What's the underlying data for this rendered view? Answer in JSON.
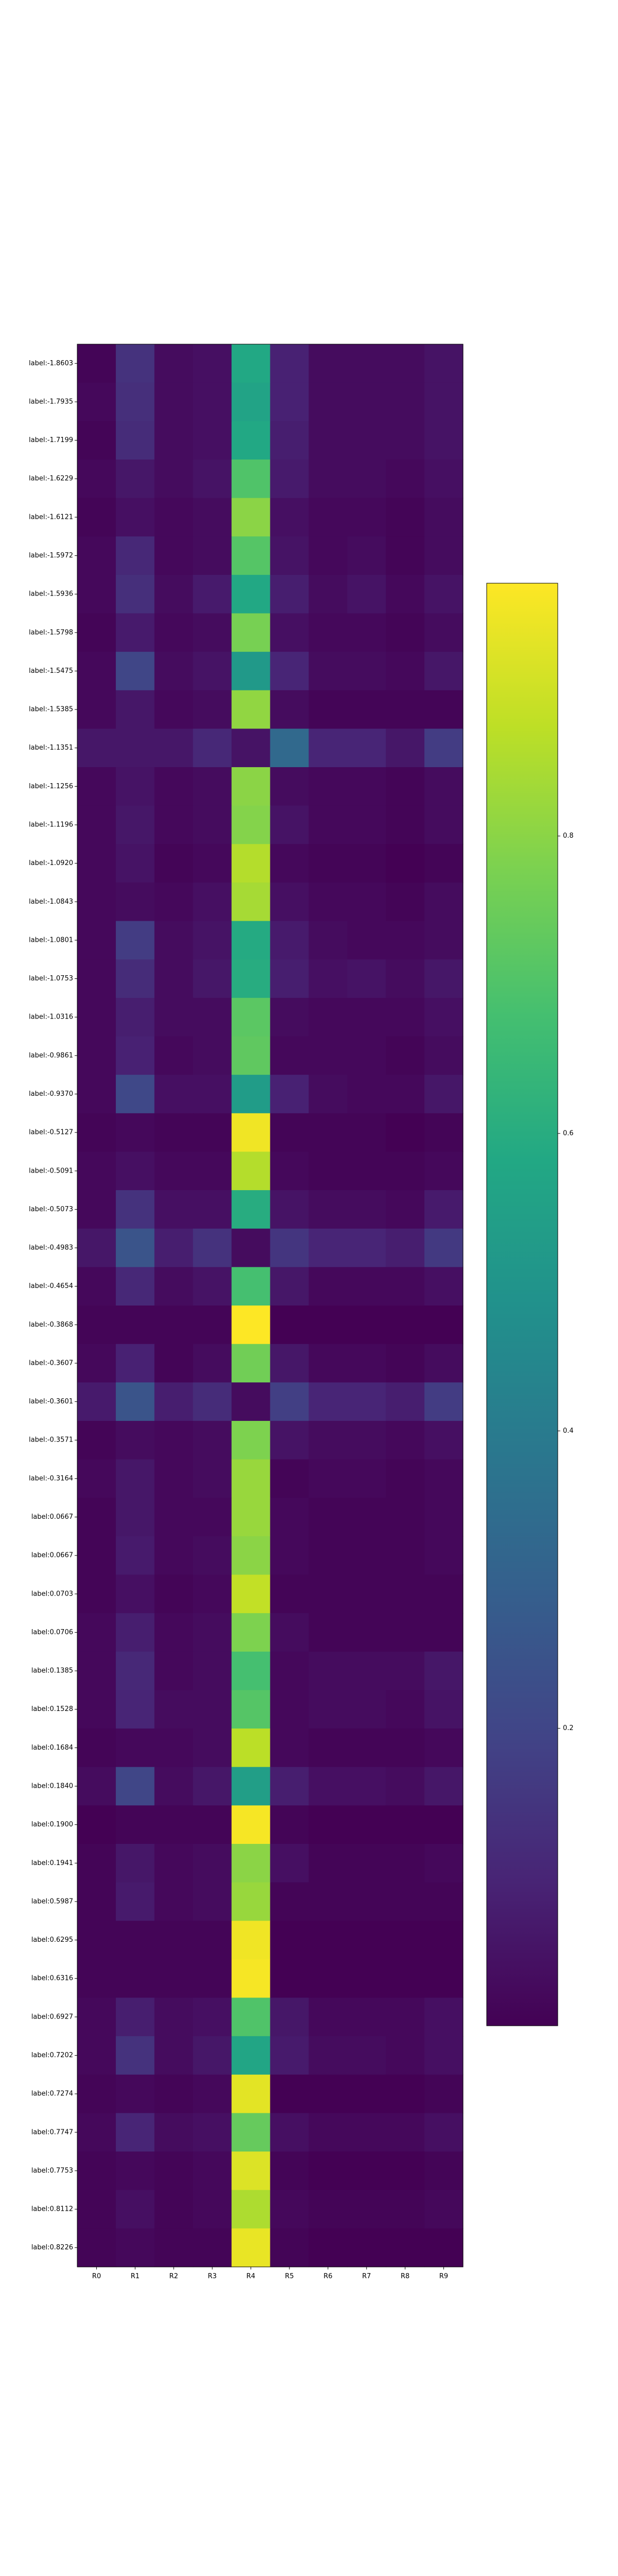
{
  "chart_data": {
    "type": "heatmap",
    "title": "",
    "xlabel": "",
    "ylabel": "",
    "columns": [
      "R0",
      "R1",
      "R2",
      "R3",
      "R4",
      "R5",
      "R6",
      "R7",
      "R8",
      "R9"
    ],
    "rows": [
      "label:-1.8603",
      "label:-1.7935",
      "label:-1.7199",
      "label:-1.6229",
      "label:-1.6121",
      "label:-1.5972",
      "label:-1.5936",
      "label:-1.5798",
      "label:-1.5475",
      "label:-1.5385",
      "label:-1.1351",
      "label:-1.1256",
      "label:-1.1196",
      "label:-1.0920",
      "label:-1.0843",
      "label:-1.0801",
      "label:-1.0753",
      "label:-1.0316",
      "label:-0.9861",
      "label:-0.9370",
      "label:-0.5127",
      "label:-0.5091",
      "label:-0.5073",
      "label:-0.4983",
      "label:-0.4654",
      "label:-0.3868",
      "label:-0.3607",
      "label:-0.3601",
      "label:-0.3571",
      "label:-0.3164",
      "label:0.0667",
      "label:0.0667",
      "label:0.0703",
      "label:0.0706",
      "label:0.1385",
      "label:0.1528",
      "label:0.1684",
      "label:0.1840",
      "label:0.1900",
      "label:0.1941",
      "label:0.5987",
      "label:0.6295",
      "label:0.6316",
      "label:0.6927",
      "label:0.7202",
      "label:0.7274",
      "label:0.7747",
      "label:0.7753",
      "label:0.8112",
      "label:0.8226"
    ],
    "values": [
      [
        0.01,
        0.14,
        0.03,
        0.04,
        0.58,
        0.09,
        0.03,
        0.03,
        0.03,
        0.05
      ],
      [
        0.02,
        0.13,
        0.03,
        0.04,
        0.56,
        0.09,
        0.03,
        0.03,
        0.03,
        0.05
      ],
      [
        0.01,
        0.12,
        0.03,
        0.04,
        0.58,
        0.08,
        0.03,
        0.03,
        0.03,
        0.05
      ],
      [
        0.02,
        0.06,
        0.03,
        0.05,
        0.7,
        0.07,
        0.03,
        0.03,
        0.02,
        0.04
      ],
      [
        0.01,
        0.04,
        0.02,
        0.03,
        0.8,
        0.04,
        0.02,
        0.02,
        0.01,
        0.03
      ],
      [
        0.02,
        0.11,
        0.02,
        0.03,
        0.71,
        0.05,
        0.02,
        0.03,
        0.01,
        0.03
      ],
      [
        0.02,
        0.13,
        0.03,
        0.07,
        0.58,
        0.08,
        0.03,
        0.05,
        0.02,
        0.05
      ],
      [
        0.01,
        0.07,
        0.02,
        0.03,
        0.77,
        0.04,
        0.02,
        0.02,
        0.01,
        0.03
      ],
      [
        0.02,
        0.2,
        0.03,
        0.05,
        0.52,
        0.1,
        0.03,
        0.03,
        0.02,
        0.06
      ],
      [
        0.02,
        0.06,
        0.02,
        0.03,
        0.81,
        0.03,
        0.01,
        0.01,
        0.01,
        0.01
      ],
      [
        0.06,
        0.06,
        0.06,
        0.11,
        0.05,
        0.33,
        0.1,
        0.1,
        0.06,
        0.17
      ],
      [
        0.02,
        0.05,
        0.02,
        0.03,
        0.8,
        0.03,
        0.02,
        0.02,
        0.01,
        0.03
      ],
      [
        0.02,
        0.06,
        0.02,
        0.03,
        0.79,
        0.05,
        0.02,
        0.02,
        0.01,
        0.03
      ],
      [
        0.02,
        0.05,
        0.01,
        0.02,
        0.86,
        0.02,
        0.01,
        0.01,
        0.0,
        0.01
      ],
      [
        0.02,
        0.03,
        0.02,
        0.04,
        0.84,
        0.04,
        0.02,
        0.02,
        0.01,
        0.03
      ],
      [
        0.02,
        0.17,
        0.03,
        0.05,
        0.59,
        0.07,
        0.03,
        0.02,
        0.02,
        0.03
      ],
      [
        0.02,
        0.12,
        0.03,
        0.06,
        0.6,
        0.08,
        0.04,
        0.05,
        0.03,
        0.06
      ],
      [
        0.02,
        0.08,
        0.03,
        0.03,
        0.72,
        0.03,
        0.02,
        0.02,
        0.02,
        0.04
      ],
      [
        0.02,
        0.09,
        0.02,
        0.03,
        0.73,
        0.02,
        0.02,
        0.02,
        0.01,
        0.03
      ],
      [
        0.02,
        0.21,
        0.04,
        0.04,
        0.53,
        0.09,
        0.03,
        0.02,
        0.02,
        0.06
      ],
      [
        0.01,
        0.02,
        0.01,
        0.01,
        0.95,
        0.01,
        0.01,
        0.01,
        0.0,
        0.01
      ],
      [
        0.02,
        0.04,
        0.02,
        0.02,
        0.86,
        0.02,
        0.01,
        0.01,
        0.01,
        0.02
      ],
      [
        0.02,
        0.14,
        0.04,
        0.04,
        0.6,
        0.05,
        0.03,
        0.03,
        0.02,
        0.07
      ],
      [
        0.06,
        0.25,
        0.08,
        0.14,
        0.03,
        0.15,
        0.1,
        0.1,
        0.08,
        0.16
      ],
      [
        0.02,
        0.11,
        0.03,
        0.05,
        0.68,
        0.06,
        0.02,
        0.02,
        0.02,
        0.04
      ],
      [
        0.01,
        0.01,
        0.01,
        0.01,
        0.97,
        0.0,
        0.0,
        0.0,
        0.0,
        0.0
      ],
      [
        0.02,
        0.09,
        0.01,
        0.03,
        0.76,
        0.06,
        0.02,
        0.02,
        0.01,
        0.03
      ],
      [
        0.07,
        0.25,
        0.08,
        0.12,
        0.03,
        0.18,
        0.1,
        0.1,
        0.08,
        0.17
      ],
      [
        0.01,
        0.03,
        0.02,
        0.03,
        0.78,
        0.05,
        0.03,
        0.03,
        0.02,
        0.04
      ],
      [
        0.02,
        0.06,
        0.02,
        0.03,
        0.82,
        0.01,
        0.02,
        0.02,
        0.01,
        0.02
      ],
      [
        0.01,
        0.06,
        0.02,
        0.02,
        0.82,
        0.02,
        0.01,
        0.01,
        0.01,
        0.02
      ],
      [
        0.01,
        0.07,
        0.02,
        0.03,
        0.8,
        0.02,
        0.01,
        0.01,
        0.01,
        0.02
      ],
      [
        0.01,
        0.04,
        0.01,
        0.02,
        0.88,
        0.01,
        0.01,
        0.01,
        0.01,
        0.01
      ],
      [
        0.02,
        0.08,
        0.02,
        0.03,
        0.78,
        0.03,
        0.01,
        0.01,
        0.01,
        0.01
      ],
      [
        0.02,
        0.11,
        0.02,
        0.03,
        0.68,
        0.02,
        0.03,
        0.03,
        0.03,
        0.06
      ],
      [
        0.02,
        0.1,
        0.03,
        0.03,
        0.71,
        0.02,
        0.03,
        0.03,
        0.02,
        0.05
      ],
      [
        0.01,
        0.02,
        0.02,
        0.03,
        0.87,
        0.02,
        0.01,
        0.01,
        0.01,
        0.02
      ],
      [
        0.03,
        0.2,
        0.03,
        0.06,
        0.54,
        0.08,
        0.04,
        0.04,
        0.03,
        0.06
      ],
      [
        0.0,
        0.01,
        0.01,
        0.01,
        0.96,
        0.01,
        0.0,
        0.0,
        0.0,
        0.0
      ],
      [
        0.01,
        0.06,
        0.02,
        0.03,
        0.8,
        0.04,
        0.01,
        0.01,
        0.01,
        0.02
      ],
      [
        0.01,
        0.07,
        0.02,
        0.03,
        0.82,
        0.01,
        0.01,
        0.01,
        0.01,
        0.01
      ],
      [
        0.01,
        0.01,
        0.01,
        0.01,
        0.95,
        0.0,
        0.0,
        0.0,
        0.0,
        0.0
      ],
      [
        0.01,
        0.01,
        0.01,
        0.01,
        0.96,
        0.0,
        0.0,
        0.0,
        0.0,
        0.0
      ],
      [
        0.02,
        0.08,
        0.03,
        0.04,
        0.7,
        0.06,
        0.02,
        0.02,
        0.02,
        0.04
      ],
      [
        0.02,
        0.14,
        0.03,
        0.06,
        0.57,
        0.07,
        0.03,
        0.03,
        0.02,
        0.04
      ],
      [
        0.01,
        0.02,
        0.01,
        0.02,
        0.93,
        0.0,
        0.0,
        0.0,
        0.0,
        0.01
      ],
      [
        0.02,
        0.1,
        0.03,
        0.04,
        0.74,
        0.04,
        0.02,
        0.02,
        0.02,
        0.04
      ],
      [
        0.01,
        0.02,
        0.01,
        0.02,
        0.92,
        0.01,
        0.0,
        0.0,
        0.0,
        0.01
      ],
      [
        0.01,
        0.04,
        0.01,
        0.02,
        0.85,
        0.02,
        0.01,
        0.01,
        0.01,
        0.02
      ],
      [
        0.01,
        0.02,
        0.01,
        0.01,
        0.94,
        0.01,
        0.0,
        0.0,
        0.0,
        0.0
      ]
    ],
    "colormap": "viridis",
    "vmin": 0.0,
    "vmax": 0.97,
    "colorbar_ticks": [
      0.2,
      0.4,
      0.6,
      0.8
    ],
    "colorbar_tick_labels": [
      "0.2",
      "0.4",
      "0.6",
      "0.8"
    ],
    "grid": false
  }
}
